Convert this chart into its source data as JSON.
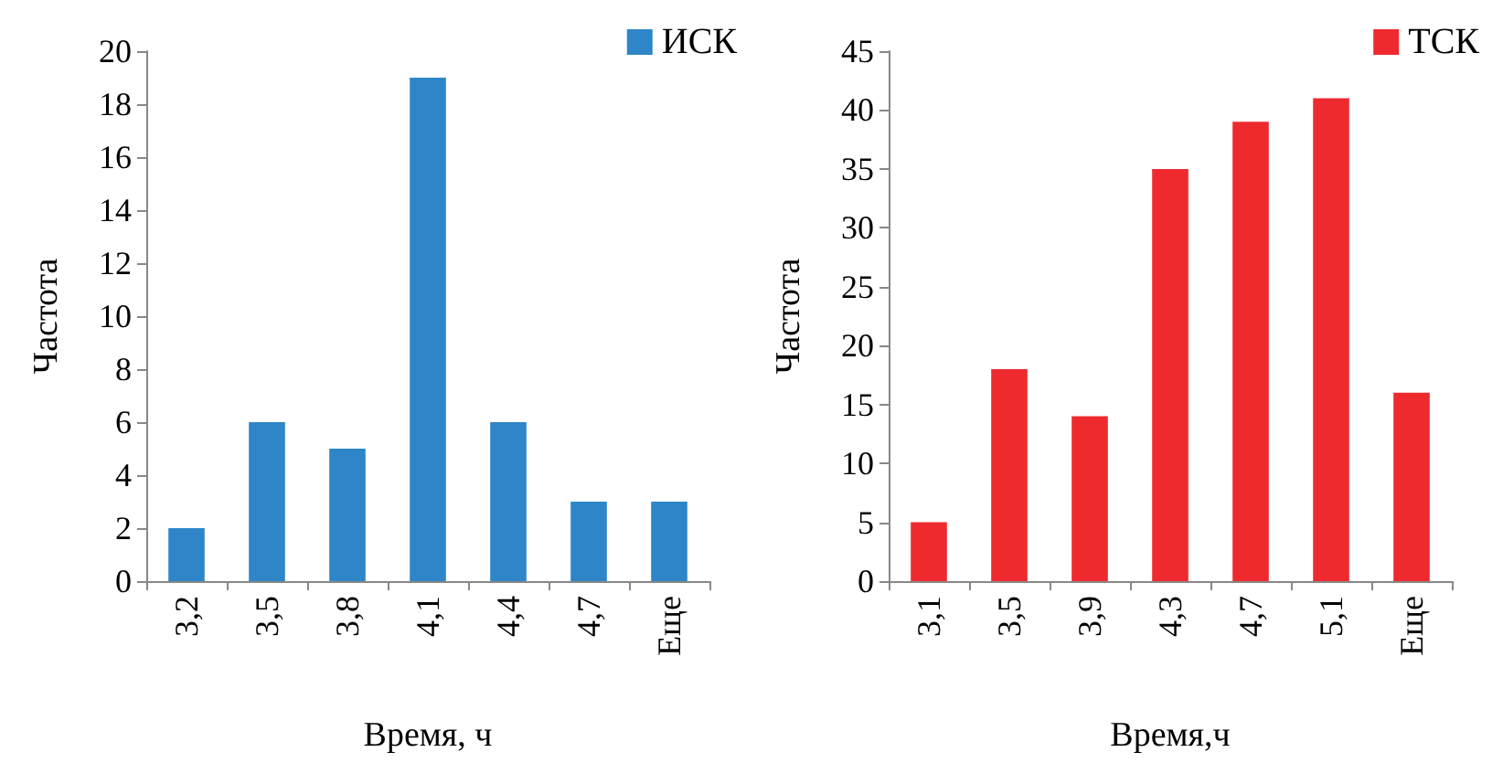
{
  "chart_data": [
    {
      "type": "bar",
      "xlabel": "Время, ч",
      "ylabel": "Частота",
      "categories": [
        "3,2",
        "3,5",
        "3,8",
        "4,1",
        "4,4",
        "4,7",
        "Еще"
      ],
      "series": [
        {
          "name": "ИСК",
          "color": "#2e86c8",
          "values": [
            2,
            6,
            5,
            19,
            6,
            3,
            3
          ]
        }
      ],
      "ylim": [
        0,
        20
      ],
      "yticks": [
        0,
        2,
        4,
        6,
        8,
        10,
        12,
        14,
        16,
        18,
        20
      ],
      "grid": false,
      "legend": "top right"
    },
    {
      "type": "bar",
      "xlabel": "Время,ч",
      "ylabel": "Частота",
      "categories": [
        "3,1",
        "3,5",
        "3,9",
        "4,3",
        "4,7",
        "5,1",
        "Еще"
      ],
      "series": [
        {
          "name": "ТСК",
          "color": "#ee2a2e",
          "values": [
            5,
            18,
            14,
            35,
            39,
            41,
            16
          ]
        }
      ],
      "ylim": [
        0,
        45
      ],
      "yticks": [
        0,
        5,
        10,
        15,
        20,
        25,
        30,
        35,
        40,
        45
      ],
      "grid": false,
      "legend": "top right"
    }
  ]
}
